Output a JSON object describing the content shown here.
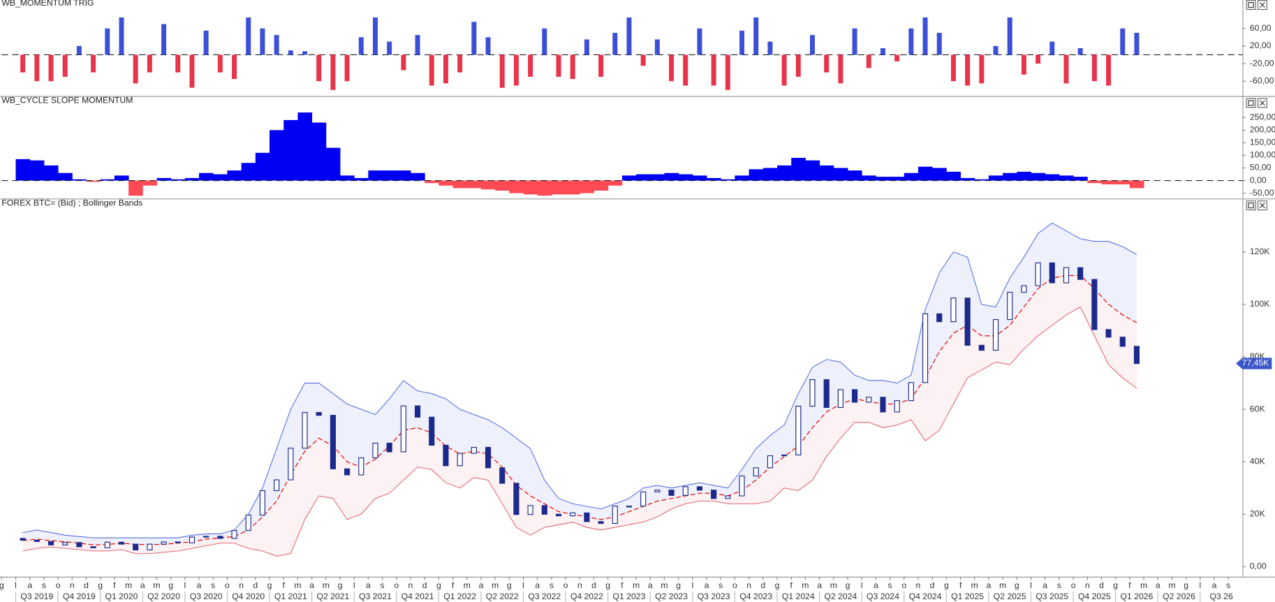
{
  "chart_data": [
    {
      "type": "bar",
      "title": "WB_MOMENTUM TRIG",
      "xlim": [
        "2019-06",
        "2026-10"
      ],
      "x": [
        "2019-07",
        "2019-08",
        "2019-09",
        "2019-10",
        "2019-11",
        "2019-12",
        "2020-01",
        "2020-02",
        "2020-03",
        "2020-04",
        "2020-05",
        "2020-06",
        "2020-07",
        "2020-08",
        "2020-09",
        "2020-10",
        "2020-11",
        "2020-12",
        "2021-01",
        "2021-02",
        "2021-03",
        "2021-04",
        "2021-05",
        "2021-06",
        "2021-07",
        "2021-08",
        "2021-09",
        "2021-10",
        "2021-11",
        "2021-12",
        "2022-01",
        "2022-02",
        "2022-03",
        "2022-04",
        "2022-05",
        "2022-06",
        "2022-07",
        "2022-08",
        "2022-09",
        "2022-10",
        "2022-11",
        "2022-12",
        "2023-01",
        "2023-02",
        "2023-03",
        "2023-04",
        "2023-05",
        "2023-06",
        "2023-07",
        "2023-08",
        "2023-09",
        "2023-10",
        "2023-11",
        "2023-12",
        "2024-01",
        "2024-02",
        "2024-03",
        "2024-04",
        "2024-05",
        "2024-06",
        "2024-07",
        "2024-08",
        "2024-09",
        "2024-10",
        "2024-11",
        "2024-12",
        "2025-01",
        "2025-02",
        "2025-03",
        "2025-04",
        "2025-05",
        "2025-06",
        "2025-07",
        "2025-08",
        "2025-09",
        "2025-10",
        "2025-11",
        "2025-12",
        "2026-01",
        "2026-02"
      ],
      "values": [
        -40,
        -60,
        -60,
        -50,
        20,
        -40,
        60,
        85,
        -65,
        -40,
        70,
        -40,
        -75,
        55,
        -40,
        -55,
        85,
        60,
        45,
        10,
        8,
        -60,
        -80,
        -60,
        40,
        85,
        30,
        -35,
        45,
        -70,
        -65,
        -40,
        75,
        40,
        -75,
        -70,
        -50,
        60,
        -50,
        -55,
        35,
        -50,
        50,
        85,
        -25,
        35,
        -60,
        -70,
        60,
        -70,
        -80,
        55,
        85,
        30,
        -70,
        -50,
        45,
        -40,
        -65,
        60,
        -30,
        15,
        -15,
        60,
        85,
        50,
        -60,
        -70,
        -65,
        20,
        85,
        -45,
        -20,
        30,
        -65,
        15,
        -60,
        -70,
        60,
        50
      ],
      "positive_color": "#3b4fd8",
      "negative_color": "#e8344a",
      "ylim": [
        -92,
        106
      ],
      "yticks": [
        {
          "value": 60,
          "label": "60,00"
        },
        {
          "value": 20,
          "label": "20,00"
        },
        {
          "value": -20,
          "label": "-20,00"
        },
        {
          "value": -60,
          "label": "-60,00"
        }
      ]
    },
    {
      "type": "area",
      "title": "WB_CYCLE SLOPE MOMENTUM",
      "xlim": [
        "2019-06",
        "2026-10"
      ],
      "x": [
        "2019-07",
        "2019-08",
        "2019-09",
        "2019-10",
        "2019-11",
        "2019-12",
        "2020-01",
        "2020-02",
        "2020-03",
        "2020-04",
        "2020-05",
        "2020-06",
        "2020-07",
        "2020-08",
        "2020-09",
        "2020-10",
        "2020-11",
        "2020-12",
        "2021-01",
        "2021-02",
        "2021-03",
        "2021-04",
        "2021-05",
        "2021-06",
        "2021-07",
        "2021-08",
        "2021-09",
        "2021-10",
        "2021-11",
        "2021-12",
        "2022-01",
        "2022-02",
        "2022-03",
        "2022-04",
        "2022-05",
        "2022-06",
        "2022-07",
        "2022-08",
        "2022-09",
        "2022-10",
        "2022-11",
        "2022-12",
        "2023-01",
        "2023-02",
        "2023-03",
        "2023-04",
        "2023-05",
        "2023-06",
        "2023-07",
        "2023-08",
        "2023-09",
        "2023-10",
        "2023-11",
        "2023-12",
        "2024-01",
        "2024-02",
        "2024-03",
        "2024-04",
        "2024-05",
        "2024-06",
        "2024-07",
        "2024-08",
        "2024-09",
        "2024-10",
        "2024-11",
        "2024-12",
        "2025-01",
        "2025-02",
        "2025-03",
        "2025-04",
        "2025-05",
        "2025-06",
        "2025-07",
        "2025-08",
        "2025-09",
        "2025-10",
        "2025-11",
        "2025-12",
        "2026-01",
        "2026-02"
      ],
      "values": [
        85,
        80,
        60,
        30,
        5,
        -5,
        5,
        20,
        -60,
        -20,
        10,
        5,
        10,
        30,
        25,
        40,
        70,
        110,
        200,
        240,
        270,
        230,
        130,
        20,
        10,
        40,
        40,
        40,
        30,
        -10,
        -20,
        -30,
        -30,
        -35,
        -40,
        -50,
        -55,
        -60,
        -55,
        -55,
        -50,
        -40,
        -20,
        20,
        25,
        25,
        30,
        25,
        20,
        10,
        5,
        20,
        45,
        50,
        60,
        90,
        80,
        60,
        50,
        40,
        20,
        15,
        15,
        30,
        55,
        50,
        35,
        10,
        5,
        20,
        30,
        35,
        30,
        25,
        20,
        15,
        -10,
        -15,
        -15,
        -30
      ],
      "positive_color": "#0000f5",
      "negative_color": "#ff4b55",
      "ylim": [
        -68,
        290
      ],
      "yticks": [
        {
          "value": 250,
          "label": "250,00"
        },
        {
          "value": 200,
          "label": "200,00"
        },
        {
          "value": 150,
          "label": "150,00"
        },
        {
          "value": 100,
          "label": "100,00"
        },
        {
          "value": 50,
          "label": "50,00"
        },
        {
          "value": 0,
          "label": "0,00"
        },
        {
          "value": -50,
          "label": "-50,00"
        }
      ]
    },
    {
      "type": "candlestick",
      "title": "FOREX BTC= (Bid) ;  Bollinger Bands",
      "xlim": [
        "2019-06",
        "2026-10"
      ],
      "x": [
        "2019-07",
        "2019-08",
        "2019-09",
        "2019-10",
        "2019-11",
        "2019-12",
        "2020-01",
        "2020-02",
        "2020-03",
        "2020-04",
        "2020-05",
        "2020-06",
        "2020-07",
        "2020-08",
        "2020-09",
        "2020-10",
        "2020-11",
        "2020-12",
        "2021-01",
        "2021-02",
        "2021-03",
        "2021-04",
        "2021-05",
        "2021-06",
        "2021-07",
        "2021-08",
        "2021-09",
        "2021-10",
        "2021-11",
        "2021-12",
        "2022-01",
        "2022-02",
        "2022-03",
        "2022-04",
        "2022-05",
        "2022-06",
        "2022-07",
        "2022-08",
        "2022-09",
        "2022-10",
        "2022-11",
        "2022-12",
        "2023-01",
        "2023-02",
        "2023-03",
        "2023-04",
        "2023-05",
        "2023-06",
        "2023-07",
        "2023-08",
        "2023-09",
        "2023-10",
        "2023-11",
        "2023-12",
        "2024-01",
        "2024-02",
        "2024-03",
        "2024-04",
        "2024-05",
        "2024-06",
        "2024-07",
        "2024-08",
        "2024-09",
        "2024-10",
        "2024-11",
        "2024-12",
        "2025-01",
        "2025-02",
        "2025-03",
        "2025-04",
        "2025-05",
        "2025-06",
        "2025-07",
        "2025-08",
        "2025-09",
        "2025-10",
        "2025-11",
        "2025-12",
        "2026-01",
        "2026-02"
      ],
      "open": [
        10.8,
        10.1,
        9.6,
        8.3,
        9.2,
        7.6,
        7.2,
        9.35,
        8.6,
        6.4,
        8.6,
        9.45,
        9.1,
        11.3,
        11.6,
        10.8,
        13.8,
        19.7,
        29.0,
        33.1,
        45.2,
        58.8,
        57.7,
        37.3,
        35.0,
        41.5,
        47.1,
        43.8,
        61.3,
        57.0,
        46.3,
        38.5,
        43.2,
        45.5,
        37.7,
        31.8,
        19.9,
        23.3,
        20.0,
        19.4,
        20.5,
        17.2,
        16.5,
        23.1,
        23.1,
        28.5,
        29.2,
        27.2,
        30.5,
        29.2,
        26.0,
        27.0,
        34.6,
        37.7,
        42.3,
        42.6,
        61.2,
        71.3,
        60.7,
        67.5,
        62.7,
        64.6,
        59.0,
        63.3,
        70.2,
        96.4,
        93.4,
        102.4,
        84.4,
        82.5,
        94.2,
        104.6,
        107.1,
        115.8,
        108.2,
        114.0,
        109.5,
        90.4,
        87.5,
        84.0
      ],
      "close": [
        10.1,
        9.6,
        8.3,
        9.2,
        7.6,
        7.2,
        9.35,
        8.6,
        6.4,
        8.6,
        9.45,
        9.1,
        11.3,
        11.6,
        10.8,
        13.8,
        19.7,
        29.0,
        33.1,
        45.2,
        58.8,
        57.7,
        37.3,
        35.0,
        41.5,
        47.1,
        43.8,
        61.3,
        57.0,
        46.3,
        38.5,
        43.2,
        45.5,
        37.7,
        31.8,
        19.9,
        23.3,
        20.0,
        19.4,
        20.5,
        17.2,
        16.5,
        23.1,
        23.1,
        28.5,
        29.2,
        27.2,
        30.5,
        29.2,
        26.0,
        27.0,
        34.6,
        37.7,
        42.3,
        42.6,
        61.2,
        71.3,
        60.7,
        67.5,
        62.7,
        64.6,
        59.0,
        63.3,
        70.2,
        96.4,
        93.4,
        102.4,
        84.4,
        82.5,
        94.2,
        104.6,
        107.1,
        115.8,
        108.2,
        114.0,
        109.5,
        90.4,
        87.5,
        84.0,
        77.45
      ],
      "upper_band": [
        13,
        14,
        13,
        12,
        11.5,
        11,
        11,
        11,
        11,
        11,
        11,
        11,
        12,
        12.5,
        12.5,
        14,
        20,
        30,
        45,
        60,
        70,
        70,
        66,
        62,
        60,
        58,
        64,
        71,
        67,
        66,
        64,
        60,
        58,
        56,
        53,
        49,
        45,
        33,
        26,
        24,
        23,
        22,
        24,
        26,
        30,
        31,
        30,
        31,
        32,
        31,
        30,
        37,
        45,
        50,
        54,
        66,
        76,
        79,
        78,
        73,
        71,
        71,
        70,
        73,
        98,
        112,
        120,
        118,
        100,
        99,
        110,
        118,
        127,
        131,
        128,
        125,
        124,
        124,
        122,
        119
      ],
      "middle_band": [
        10,
        10.5,
        10,
        9.5,
        9,
        8.3,
        8.5,
        9,
        8.5,
        8.5,
        8.5,
        9,
        9.5,
        10.5,
        11,
        11.5,
        14,
        19,
        25,
        35,
        44,
        49,
        46,
        40,
        38,
        41,
        46,
        52,
        53,
        51,
        46,
        43,
        44,
        43,
        38,
        31,
        27,
        24,
        21,
        20,
        19,
        18,
        19,
        21,
        23,
        25,
        26,
        27,
        28,
        28,
        27,
        29,
        33,
        38,
        42,
        46,
        53,
        59,
        62,
        64,
        63,
        62,
        62,
        64,
        72,
        82,
        89,
        92,
        88,
        88,
        92,
        99,
        106,
        110,
        111,
        111,
        106,
        100,
        96,
        93
      ],
      "lower_band": [
        6,
        7,
        7.5,
        7,
        6.5,
        6,
        6,
        6.5,
        5,
        5,
        5.5,
        6,
        7,
        8,
        9,
        9,
        7,
        6,
        4,
        5,
        18,
        27,
        26,
        18,
        20,
        26,
        28,
        33,
        38,
        37,
        32,
        30,
        34,
        33,
        24,
        15,
        12,
        15,
        16,
        17,
        15,
        14,
        15,
        16,
        17,
        19,
        22,
        24,
        25,
        25,
        24,
        24,
        24,
        25,
        30,
        29,
        33,
        42,
        49,
        55,
        55,
        53,
        54,
        56,
        48,
        52,
        62,
        72,
        75,
        78,
        77,
        83,
        88,
        92,
        96,
        99,
        88,
        77,
        72,
        68
      ],
      "candle_color": "#1b2a8c",
      "upper_color": "#3f5fe0",
      "middle_color": "#e00000",
      "lower_color": "#e05262",
      "upper_fill": "#eef0fb",
      "lower_fill": "#fcf1f3",
      "last_value_label": "77,45K",
      "last_label_color": "#3a56c8",
      "ylim": [
        -3.5,
        136
      ],
      "yticks": [
        {
          "value": 120,
          "label": "120K"
        },
        {
          "value": 100,
          "label": "100K"
        },
        {
          "value": 80,
          "label": "80K"
        },
        {
          "value": 60,
          "label": "60K"
        },
        {
          "value": 40,
          "label": "40K"
        },
        {
          "value": 20,
          "label": "20K"
        },
        {
          "value": 0,
          "label": "0,00"
        }
      ],
      "x_month_labels": [
        "g",
        "l",
        "a",
        "s",
        "o",
        "n",
        "d",
        "g",
        "f",
        "m",
        "a",
        "m",
        "g",
        "l",
        "a",
        "s",
        "o",
        "n",
        "d",
        "g",
        "f",
        "m",
        "a",
        "m",
        "g",
        "l",
        "a",
        "s",
        "o",
        "n",
        "d",
        "g",
        "f",
        "m",
        "a",
        "m",
        "g",
        "l",
        "a",
        "s",
        "o",
        "n",
        "d",
        "g",
        "f",
        "m",
        "a",
        "m",
        "g",
        "l",
        "a",
        "s",
        "o",
        "n",
        "d",
        "g",
        "f",
        "m",
        "a",
        "m",
        "g",
        "l",
        "a",
        "s",
        "o",
        "n",
        "d",
        "g",
        "f",
        "m",
        "a",
        "m",
        "g",
        "l",
        "a",
        "s",
        "o",
        "n",
        "d",
        "g",
        "f",
        "m",
        "a",
        "m",
        "g",
        "l",
        "a",
        "s"
      ],
      "x_quarter_labels": [
        "Q3 2019",
        "Q4 2019",
        "Q1 2020",
        "Q2 2020",
        "Q3 2020",
        "Q4 2020",
        "Q1 2021",
        "Q2 2021",
        "Q3 2021",
        "Q4 2021",
        "Q1 2022",
        "Q2 2022",
        "Q3 2022",
        "Q4 2022",
        "Q1 2023",
        "Q2 2023",
        "Q3 2023",
        "Q4 2023",
        "Q1 2024",
        "Q2 2024",
        "Q3 2024",
        "Q4 2024",
        "Q1 2025",
        "Q2 2025",
        "Q3 2025",
        "Q4 2025",
        "Q1 2026",
        "Q2 2026",
        "Q3 26"
      ]
    }
  ]
}
